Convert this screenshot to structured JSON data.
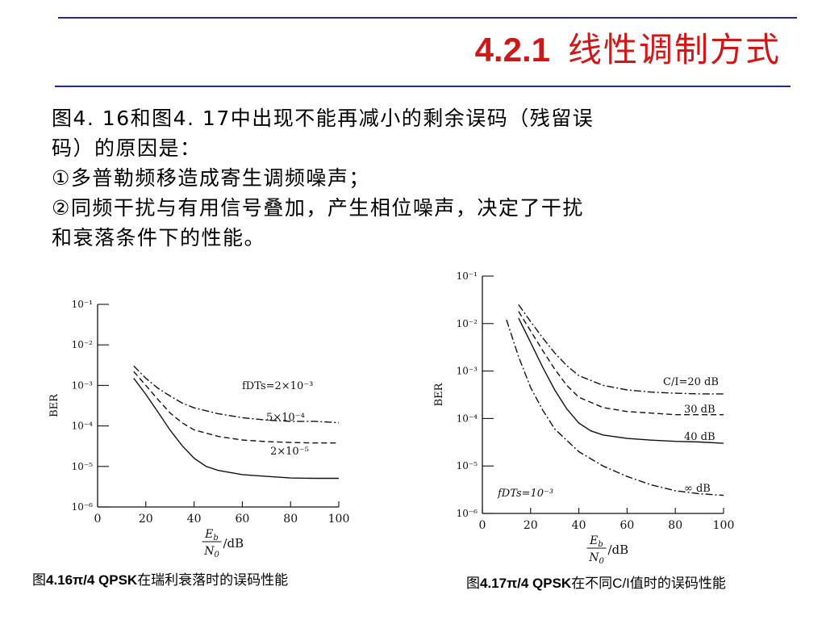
{
  "slide": {
    "section_number": "4.2.1",
    "title": "线性调制方式",
    "paragraph_lines": [
      "图4. 16和图4. 17中出现不能再减小的剩余误码（残留误",
      "码）的原因是：",
      "①多普勒频移造成寄生调频噪声；",
      "②同频干扰与有用信号叠加，产生相位噪声，决定了干扰",
      "和衰落条件下的性能。"
    ],
    "colors": {
      "title": "#d21515",
      "rule": "#1f2a8a",
      "text": "#000000",
      "plot": "#111111"
    }
  },
  "captions": [
    {
      "prefix": "图",
      "bold": "4.16π/4 QPSK",
      "suffix": "在瑞利衰落时的误码性能"
    },
    {
      "prefix": "图",
      "bold": "4.17π/4 QPSK",
      "suffix": "在不同C/I值时的误码性能"
    }
  ],
  "chart_data": [
    {
      "type": "line",
      "ylabel": "BER",
      "xlabel_num": "E_b",
      "xlabel_den": "N_0",
      "xlabel_unit": "/dB",
      "y_scale": "log",
      "xlim": [
        0,
        100
      ],
      "ylim": [
        1e-06,
        0.1
      ],
      "x_ticks": [
        "0",
        "20",
        "40",
        "60",
        "80",
        "100"
      ],
      "y_ticks": [
        "10⁻¹",
        "10⁻²",
        "10⁻³",
        "10⁻⁴",
        "10⁻⁵",
        "10⁻⁶"
      ],
      "series": [
        {
          "label_text": "fDTs=2×10⁻³",
          "style": "dashdot",
          "points": [
            [
              15,
              0.003
            ],
            [
              20,
              0.0015
            ],
            [
              25,
              0.00085
            ],
            [
              30,
              0.00055
            ],
            [
              35,
              0.00037
            ],
            [
              40,
              0.00028
            ],
            [
              50,
              0.0002
            ],
            [
              60,
              0.00016
            ],
            [
              70,
              0.00014
            ],
            [
              80,
              0.00013
            ],
            [
              90,
              0.00013
            ],
            [
              100,
              0.00012
            ]
          ]
        },
        {
          "label_text": "5×10⁻⁴",
          "style": "dashed",
          "points": [
            [
              15,
              0.0022
            ],
            [
              20,
              0.001
            ],
            [
              25,
              0.00045
            ],
            [
              30,
              0.00021
            ],
            [
              35,
              0.00012
            ],
            [
              40,
              8e-05
            ],
            [
              50,
              5.5e-05
            ],
            [
              60,
              4.5e-05
            ],
            [
              70,
              4.1e-05
            ],
            [
              80,
              3.9e-05
            ],
            [
              90,
              3.8e-05
            ],
            [
              100,
              3.8e-05
            ]
          ]
        },
        {
          "label_text": "2×10⁻⁵",
          "style": "solid",
          "points": [
            [
              15,
              0.0015
            ],
            [
              20,
              0.0006
            ],
            [
              25,
              0.00022
            ],
            [
              30,
              8e-05
            ],
            [
              35,
              3.3e-05
            ],
            [
              40,
              1.6e-05
            ],
            [
              45,
              1e-05
            ],
            [
              50,
              8e-06
            ],
            [
              60,
              6.3e-06
            ],
            [
              70,
              5.7e-06
            ],
            [
              80,
              5.2e-06
            ],
            [
              90,
              5.1e-06
            ],
            [
              100,
              5.1e-06
            ]
          ]
        }
      ]
    },
    {
      "type": "line",
      "ylabel": "BER",
      "xlabel_num": "E_b",
      "xlabel_den": "N_0",
      "xlabel_unit": "/dB",
      "y_scale": "log",
      "xlim": [
        0,
        100
      ],
      "ylim": [
        1e-06,
        0.1
      ],
      "x_ticks": [
        "0",
        "20",
        "40",
        "60",
        "80",
        "100"
      ],
      "y_ticks": [
        "10⁻¹",
        "10⁻²",
        "10⁻³",
        "10⁻⁴",
        "10⁻⁵",
        "10⁻⁶"
      ],
      "annotation": "fDTs=10⁻³",
      "series": [
        {
          "label_text": "C/I=20 dB",
          "style": "dashdot",
          "points": [
            [
              15,
              0.025
            ],
            [
              20,
              0.011
            ],
            [
              25,
              0.005
            ],
            [
              30,
              0.0024
            ],
            [
              35,
              0.0013
            ],
            [
              40,
              0.0008
            ],
            [
              50,
              0.0005
            ],
            [
              60,
              0.0004
            ],
            [
              70,
              0.00036
            ],
            [
              80,
              0.00034
            ],
            [
              90,
              0.00033
            ],
            [
              100,
              0.00033
            ]
          ]
        },
        {
          "label_text": "30 dB",
          "style": "dashed",
          "points": [
            [
              15,
              0.018
            ],
            [
              20,
              0.007
            ],
            [
              25,
              0.0027
            ],
            [
              30,
              0.0011
            ],
            [
              35,
              0.0005
            ],
            [
              40,
              0.00028
            ],
            [
              50,
              0.00017
            ],
            [
              60,
              0.00014
            ],
            [
              70,
              0.00013
            ],
            [
              80,
              0.00012
            ],
            [
              90,
              0.00012
            ],
            [
              100,
              0.00012
            ]
          ]
        },
        {
          "label_text": "40 dB",
          "style": "solid",
          "points": [
            [
              15,
              0.013
            ],
            [
              20,
              0.004
            ],
            [
              25,
              0.0012
            ],
            [
              30,
              0.0004
            ],
            [
              35,
              0.00016
            ],
            [
              40,
              8e-05
            ],
            [
              45,
              5.5e-05
            ],
            [
              50,
              4.5e-05
            ],
            [
              60,
              3.8e-05
            ],
            [
              70,
              3.5e-05
            ],
            [
              80,
              3.3e-05
            ],
            [
              90,
              3.2e-05
            ],
            [
              100,
              3e-05
            ]
          ]
        },
        {
          "label_text": "∞ dB",
          "style": "dashdot",
          "points": [
            [
              10,
              0.012
            ],
            [
              15,
              0.002
            ],
            [
              20,
              0.00045
            ],
            [
              25,
              0.00015
            ],
            [
              30,
              6e-05
            ],
            [
              40,
              2e-05
            ],
            [
              50,
              1e-05
            ],
            [
              60,
              6e-06
            ],
            [
              70,
              4e-06
            ],
            [
              80,
              3e-06
            ],
            [
              90,
              2.6e-06
            ],
            [
              100,
              2.4e-06
            ]
          ]
        }
      ]
    }
  ]
}
